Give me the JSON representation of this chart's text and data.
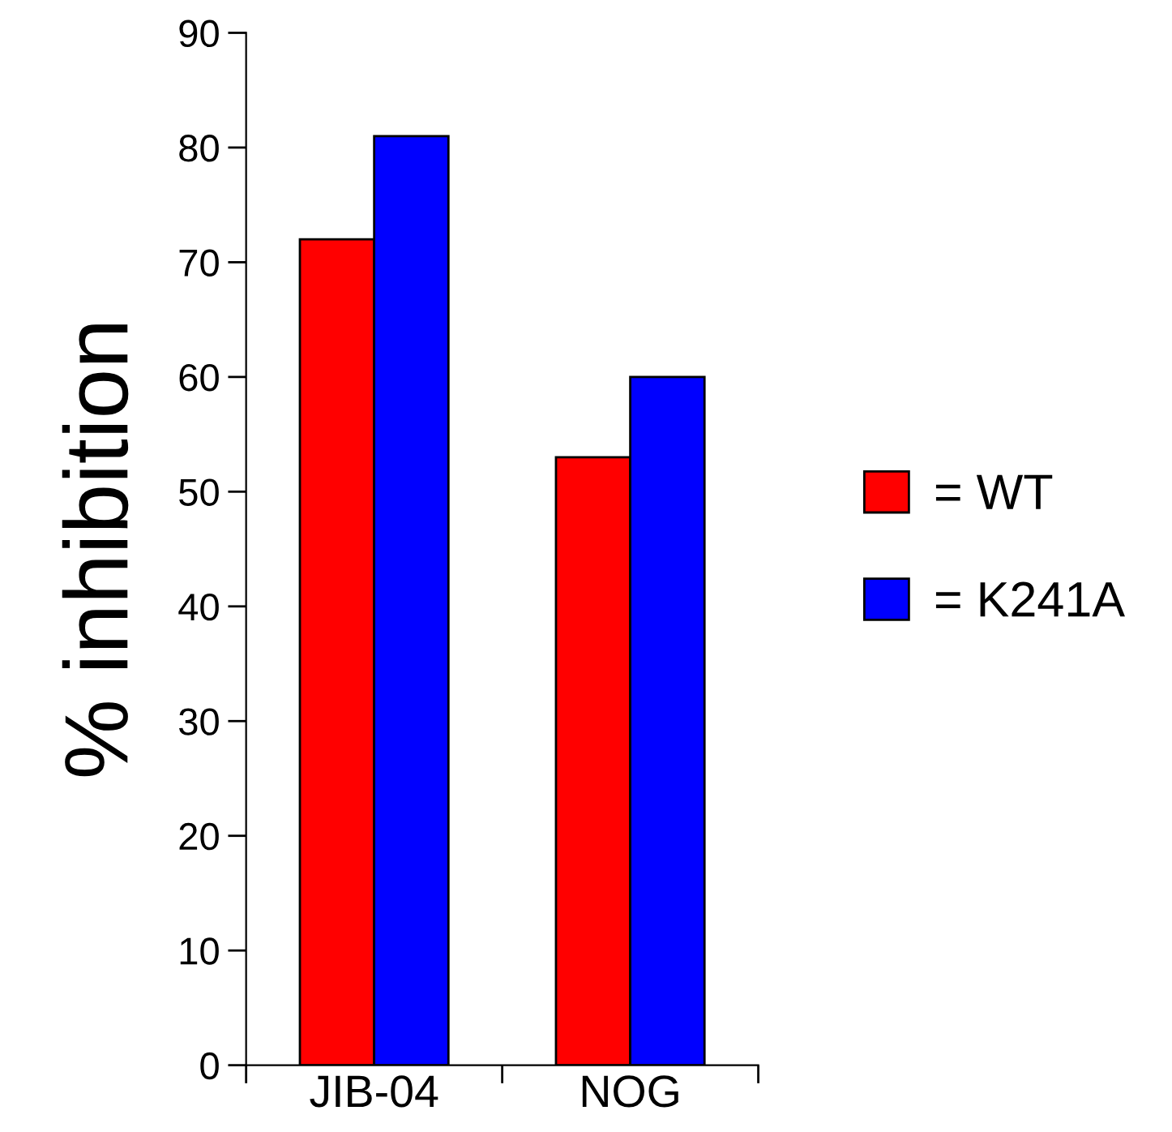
{
  "chart_data": {
    "type": "bar",
    "ylabel": "% inhibition",
    "categories": [
      "JIB-04",
      "NOG"
    ],
    "series": [
      {
        "name": "= WT",
        "color": "#ff0000",
        "values": [
          72,
          53
        ]
      },
      {
        "name": "= K241A",
        "color": "#0000ff",
        "values": [
          81,
          60
        ]
      }
    ],
    "ylim": [
      0,
      90
    ],
    "yticks": [
      0,
      10,
      20,
      30,
      40,
      50,
      60,
      70,
      80,
      90
    ],
    "grid": false,
    "legend": "right"
  }
}
